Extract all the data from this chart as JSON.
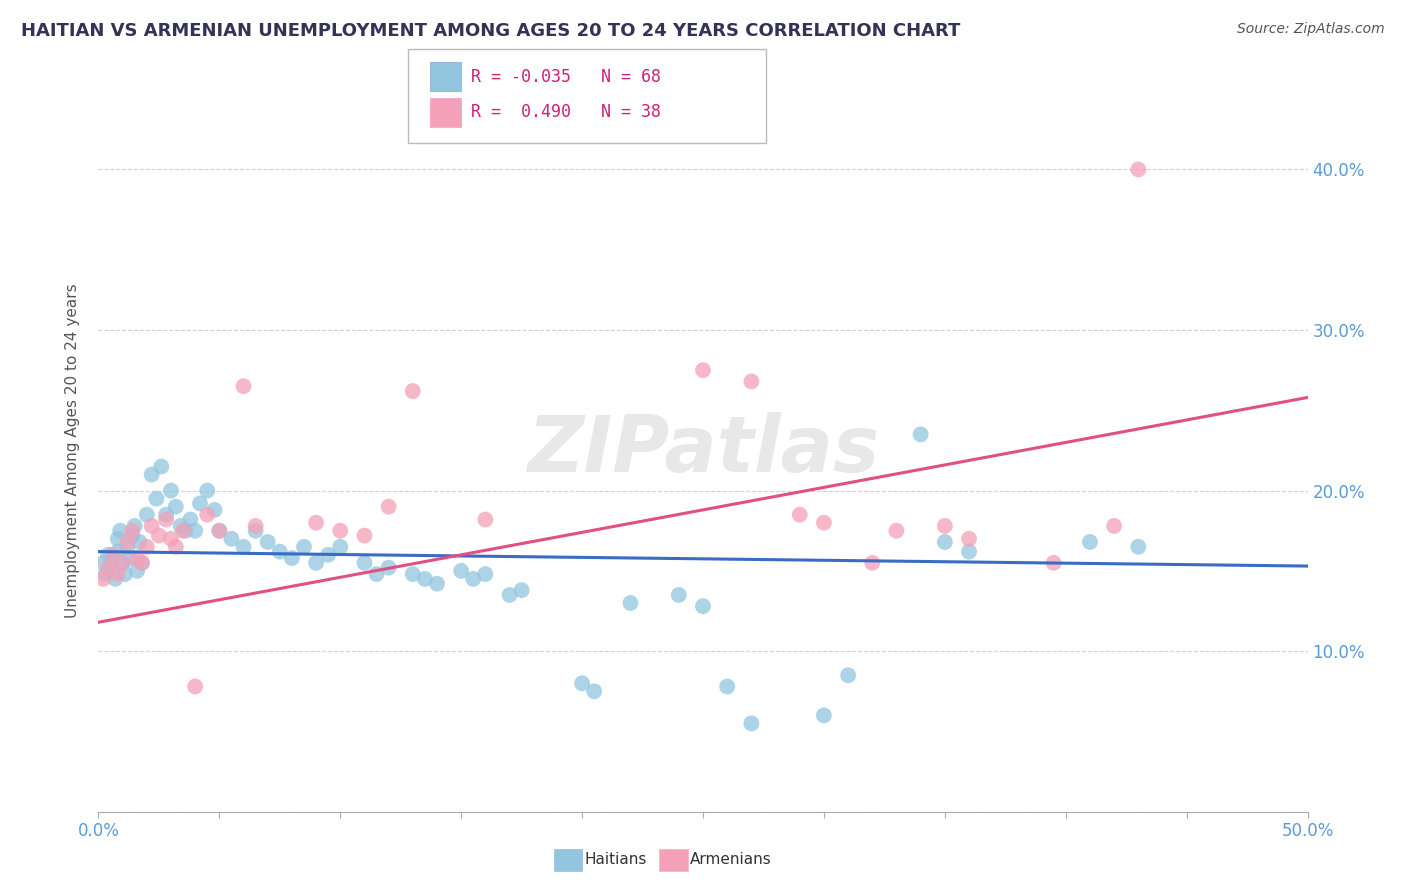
{
  "title": "HAITIAN VS ARMENIAN UNEMPLOYMENT AMONG AGES 20 TO 24 YEARS CORRELATION CHART",
  "source": "Source: ZipAtlas.com",
  "ylabel": "Unemployment Among Ages 20 to 24 years",
  "xmin": 0.0,
  "xmax": 0.5,
  "ymin": 0.0,
  "ymax": 0.45,
  "yticks": [
    0.0,
    0.1,
    0.2,
    0.3,
    0.4
  ],
  "ytick_labels": [
    "",
    "10.0%",
    "20.0%",
    "30.0%",
    "40.0%"
  ],
  "xticks": [
    0.0,
    0.05,
    0.1,
    0.15,
    0.2,
    0.25,
    0.3,
    0.35,
    0.4,
    0.45,
    0.5
  ],
  "xtick_labels": [
    "0.0%",
    "",
    "",
    "",
    "",
    "",
    "",
    "",
    "",
    "",
    "50.0%"
  ],
  "watermark": "ZIPatlas",
  "legend_R_haitian": "-0.035",
  "legend_N_haitian": "68",
  "legend_R_armenian": "0.490",
  "legend_N_armenian": "38",
  "haitian_color": "#92C5DE",
  "armenian_color": "#F4A0B8",
  "haitian_line_color": "#3B6CC4",
  "armenian_line_color": "#E05080",
  "background_color": "#FFFFFF",
  "haitian_scatter_x": [
    0.002,
    0.003,
    0.004,
    0.005,
    0.006,
    0.007,
    0.008,
    0.008,
    0.009,
    0.01,
    0.011,
    0.012,
    0.013,
    0.014,
    0.015,
    0.016,
    0.017,
    0.018,
    0.02,
    0.022,
    0.024,
    0.026,
    0.028,
    0.03,
    0.032,
    0.034,
    0.036,
    0.038,
    0.04,
    0.042,
    0.045,
    0.048,
    0.05,
    0.055,
    0.06,
    0.065,
    0.07,
    0.075,
    0.08,
    0.085,
    0.09,
    0.095,
    0.1,
    0.11,
    0.115,
    0.12,
    0.13,
    0.135,
    0.14,
    0.15,
    0.155,
    0.16,
    0.17,
    0.175,
    0.2,
    0.205,
    0.22,
    0.24,
    0.25,
    0.26,
    0.27,
    0.3,
    0.31,
    0.34,
    0.35,
    0.36,
    0.41,
    0.43
  ],
  "haitian_scatter_y": [
    0.155,
    0.148,
    0.16,
    0.152,
    0.158,
    0.145,
    0.17,
    0.162,
    0.175,
    0.155,
    0.148,
    0.165,
    0.158,
    0.172,
    0.178,
    0.15,
    0.168,
    0.155,
    0.185,
    0.21,
    0.195,
    0.215,
    0.185,
    0.2,
    0.19,
    0.178,
    0.175,
    0.182,
    0.175,
    0.192,
    0.2,
    0.188,
    0.175,
    0.17,
    0.165,
    0.175,
    0.168,
    0.162,
    0.158,
    0.165,
    0.155,
    0.16,
    0.165,
    0.155,
    0.148,
    0.152,
    0.148,
    0.145,
    0.142,
    0.15,
    0.145,
    0.148,
    0.135,
    0.138,
    0.08,
    0.075,
    0.13,
    0.135,
    0.128,
    0.078,
    0.055,
    0.06,
    0.085,
    0.235,
    0.168,
    0.162,
    0.168,
    0.165
  ],
  "armenian_scatter_x": [
    0.002,
    0.004,
    0.006,
    0.008,
    0.01,
    0.012,
    0.014,
    0.016,
    0.018,
    0.02,
    0.022,
    0.025,
    0.028,
    0.03,
    0.032,
    0.035,
    0.04,
    0.045,
    0.05,
    0.06,
    0.065,
    0.09,
    0.1,
    0.11,
    0.12,
    0.13,
    0.16,
    0.25,
    0.27,
    0.29,
    0.3,
    0.32,
    0.33,
    0.35,
    0.36,
    0.395,
    0.42,
    0.43
  ],
  "armenian_scatter_y": [
    0.145,
    0.152,
    0.16,
    0.148,
    0.155,
    0.168,
    0.175,
    0.158,
    0.155,
    0.165,
    0.178,
    0.172,
    0.182,
    0.17,
    0.165,
    0.175,
    0.078,
    0.185,
    0.175,
    0.265,
    0.178,
    0.18,
    0.175,
    0.172,
    0.19,
    0.262,
    0.182,
    0.275,
    0.268,
    0.185,
    0.18,
    0.155,
    0.175,
    0.178,
    0.17,
    0.155,
    0.178,
    0.4
  ],
  "haitian_trend_x": [
    0.0,
    0.5
  ],
  "haitian_trend_y": [
    0.162,
    0.153
  ],
  "armenian_trend_x": [
    0.0,
    0.5
  ],
  "armenian_trend_y": [
    0.118,
    0.258
  ]
}
